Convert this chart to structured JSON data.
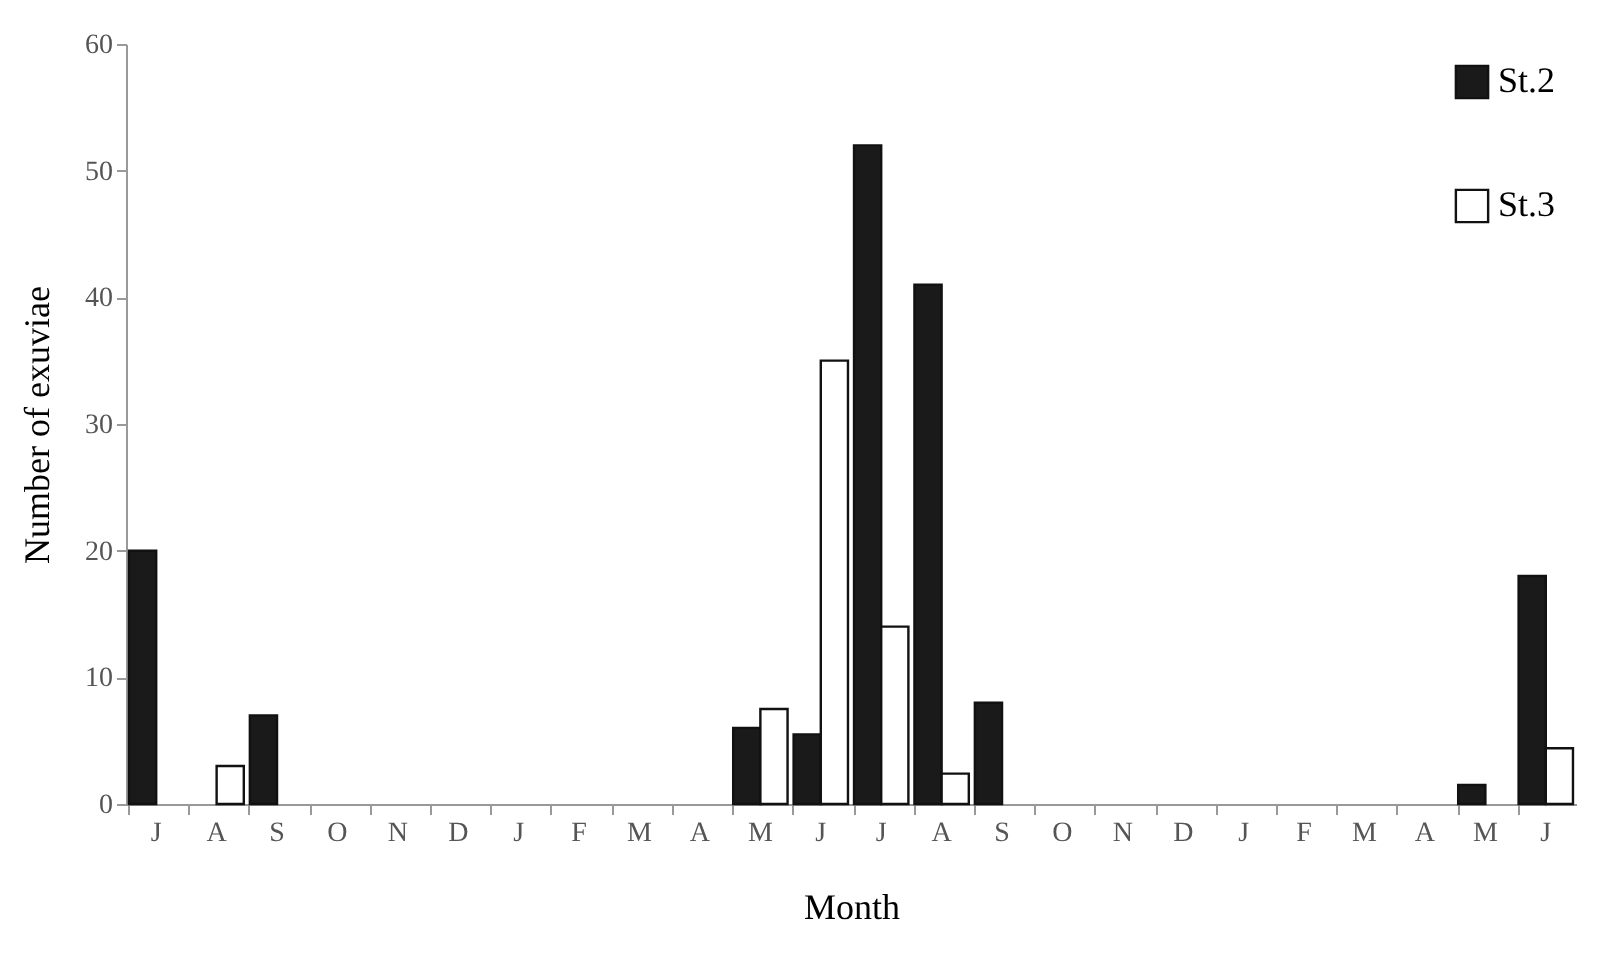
{
  "chart_data": {
    "type": "bar",
    "xlabel": "Month",
    "ylabel": "Number of exuviae",
    "categories": [
      "J",
      "A",
      "S",
      "O",
      "N",
      "D",
      "J",
      "F",
      "M",
      "A",
      "M",
      "J",
      "J",
      "A",
      "S",
      "O",
      "N",
      "D",
      "J",
      "F",
      "M",
      "A",
      "M",
      "J"
    ],
    "series": [
      {
        "name": "St.2",
        "color": "#1a1a1a",
        "values": [
          20,
          0,
          7,
          0,
          0,
          0,
          0,
          0,
          0,
          0,
          6,
          5.5,
          52,
          41,
          8,
          0,
          0,
          0,
          0,
          0,
          0,
          0,
          1.5,
          18
        ]
      },
      {
        "name": "St.3",
        "color": "#ffffff",
        "values": [
          0,
          3,
          0,
          0,
          0,
          0,
          0,
          0,
          0,
          0,
          7.5,
          35,
          14,
          2.4,
          0,
          0,
          0,
          0,
          0,
          0,
          0,
          0,
          0,
          4.4
        ]
      }
    ],
    "ylim": [
      0,
      60
    ],
    "yticks": [
      0,
      10,
      20,
      30,
      40,
      50,
      60
    ],
    "grid": false,
    "legend": "top right"
  }
}
